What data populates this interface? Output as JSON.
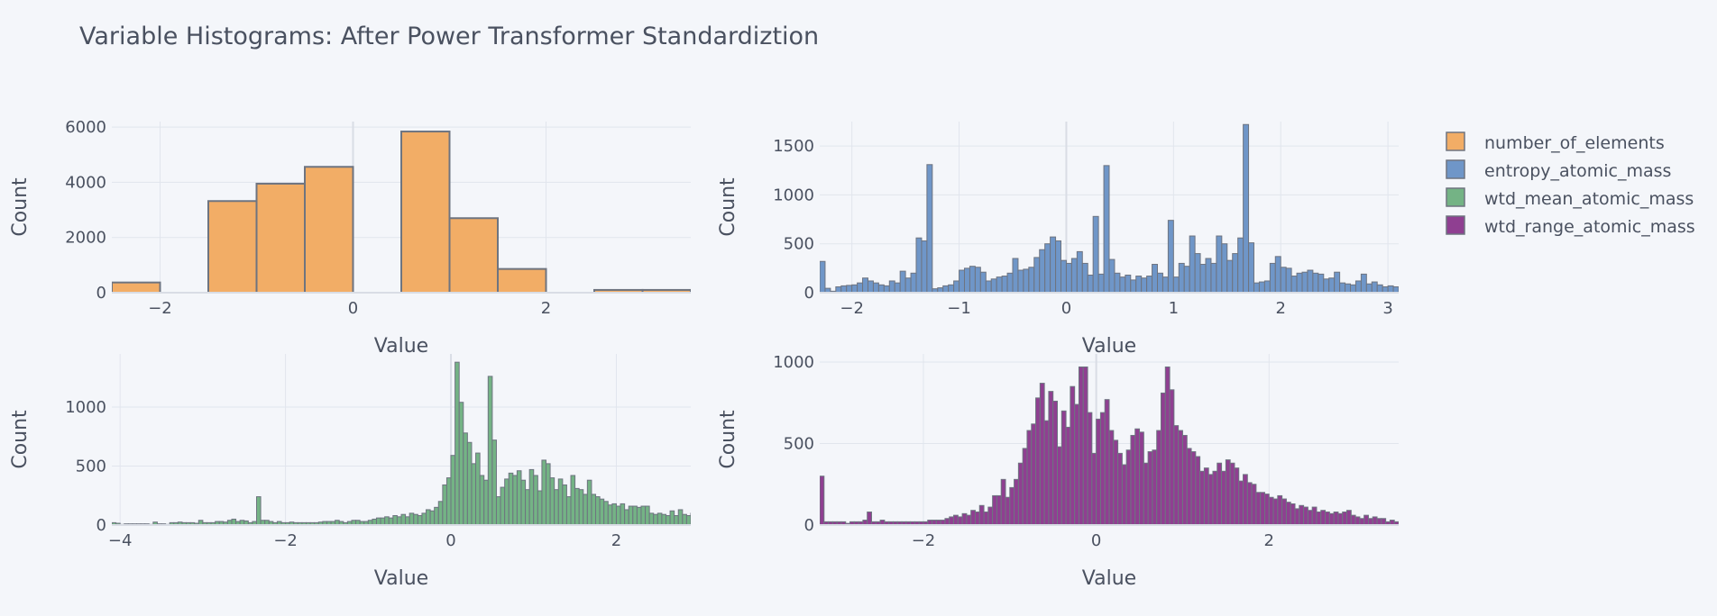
{
  "title": "Variable Histograms: After Power Transformer Standardiztion",
  "colors": {
    "background": "#f4f6fa",
    "grid": "#e1e5ed",
    "zeroline": "#d9dde5",
    "bar_outline": "#6e7480",
    "text": "#4a5160"
  },
  "legend": {
    "placement": "right",
    "items": [
      {
        "label": "number_of_elements",
        "color": "#f2ad66"
      },
      {
        "label": "entropy_atomic_mass",
        "color": "#6f96c8"
      },
      {
        "label": "wtd_mean_atomic_mass",
        "color": "#74b385"
      },
      {
        "label": "wtd_range_atomic_mass",
        "color": "#8f3f91"
      }
    ]
  },
  "chart_data": [
    {
      "type": "bar",
      "series_name": "number_of_elements",
      "xlabel": "Value",
      "ylabel": "Count",
      "xlim": [
        -2.5,
        3.5
      ],
      "ylim": [
        0,
        6200
      ],
      "xticks": [
        -2,
        0,
        2
      ],
      "xtick_labels": [
        "−2",
        "0",
        "2"
      ],
      "yticks": [
        0,
        2000,
        4000,
        6000
      ],
      "ytick_labels": [
        "0",
        "2000",
        "4000",
        "6000"
      ],
      "grid": true,
      "bin_start": -2.5,
      "bin_width": 0.5,
      "values": [
        370,
        0,
        3320,
        3950,
        4560,
        0,
        5840,
        2700,
        860,
        0,
        100,
        100
      ]
    },
    {
      "type": "bar",
      "series_name": "entropy_atomic_mass",
      "xlabel": "Value",
      "ylabel": "Count",
      "xlim": [
        -2.3,
        3.1
      ],
      "ylim": [
        0,
        1750
      ],
      "xticks": [
        -2,
        -1,
        0,
        1,
        2,
        3
      ],
      "xtick_labels": [
        "−2",
        "−1",
        "0",
        "1",
        "2",
        "3"
      ],
      "yticks": [
        0,
        500,
        1000,
        1500
      ],
      "ytick_labels": [
        "0",
        "500",
        "1000",
        "1500"
      ],
      "grid": true,
      "bin_start": -2.3,
      "bin_width": 0.05,
      "values": [
        320,
        45,
        15,
        60,
        70,
        75,
        80,
        100,
        150,
        120,
        100,
        80,
        70,
        120,
        100,
        220,
        150,
        200,
        560,
        530,
        1310,
        40,
        50,
        70,
        80,
        120,
        230,
        250,
        270,
        260,
        210,
        120,
        140,
        160,
        170,
        200,
        350,
        230,
        240,
        260,
        360,
        440,
        500,
        570,
        530,
        330,
        300,
        350,
        420,
        300,
        180,
        780,
        190,
        1300,
        340,
        200,
        160,
        180,
        130,
        170,
        150,
        170,
        290,
        200,
        160,
        740,
        160,
        300,
        270,
        580,
        400,
        290,
        350,
        300,
        580,
        500,
        330,
        400,
        560,
        1720,
        510,
        100,
        110,
        120,
        300,
        370,
        260,
        250,
        170,
        200,
        210,
        230,
        200,
        190,
        140,
        150,
        210,
        100,
        90,
        80,
        120,
        190,
        90,
        110,
        80,
        60,
        70,
        60,
        40,
        60,
        50,
        40,
        50,
        30,
        20,
        40,
        30,
        20,
        10,
        20,
        10,
        20,
        10,
        15,
        10,
        5,
        10,
        40,
        20,
        20,
        10,
        5,
        5,
        35
      ]
    },
    {
      "type": "bar",
      "series_name": "wtd_mean_atomic_mass",
      "xlabel": "Value",
      "ylabel": "Count",
      "xlim": [
        -4.1,
        2.9
      ],
      "ylim": [
        0,
        1450
      ],
      "xticks": [
        -4,
        -2,
        0,
        2
      ],
      "xtick_labels": [
        "−4",
        "−2",
        "0",
        "2"
      ],
      "yticks": [
        0,
        500,
        1000
      ],
      "ytick_labels": [
        "0",
        "500",
        "1000"
      ],
      "grid": true,
      "bin_start": -4.1,
      "bin_width": 0.05,
      "values": [
        20,
        15,
        5,
        10,
        10,
        10,
        10,
        10,
        10,
        5,
        25,
        10,
        10,
        5,
        20,
        20,
        25,
        20,
        20,
        20,
        15,
        40,
        20,
        20,
        20,
        30,
        30,
        25,
        40,
        50,
        30,
        40,
        35,
        20,
        30,
        240,
        40,
        40,
        30,
        20,
        30,
        20,
        20,
        25,
        20,
        20,
        20,
        20,
        20,
        20,
        25,
        30,
        30,
        30,
        40,
        30,
        20,
        30,
        40,
        40,
        30,
        30,
        40,
        50,
        60,
        60,
        70,
        60,
        80,
        70,
        90,
        70,
        100,
        90,
        80,
        100,
        130,
        120,
        150,
        200,
        340,
        400,
        590,
        1380,
        1040,
        780,
        700,
        520,
        610,
        420,
        380,
        1260,
        720,
        240,
        320,
        390,
        440,
        420,
        460,
        380,
        300,
        470,
        420,
        290,
        550,
        520,
        400,
        300,
        390,
        340,
        240,
        420,
        310,
        300,
        260,
        380,
        260,
        240,
        220,
        200,
        170,
        180,
        160,
        180,
        130,
        160,
        160,
        150,
        160,
        160,
        100,
        90,
        100,
        90,
        80,
        120,
        80,
        130,
        90,
        80,
        100,
        80,
        80,
        70,
        80,
        60,
        90,
        80,
        60,
        50,
        60,
        50,
        60,
        50,
        40,
        50,
        40,
        60,
        80,
        70,
        80,
        110,
        60,
        40,
        50,
        40,
        30,
        50
      ]
    },
    {
      "type": "bar",
      "series_name": "wtd_range_atomic_mass",
      "xlabel": "Value",
      "ylabel": "Count",
      "xlim": [
        -3.2,
        3.5
      ],
      "ylim": [
        0,
        1050
      ],
      "xticks": [
        -2,
        0,
        2
      ],
      "xtick_labels": [
        "−2",
        "0",
        "2"
      ],
      "yticks": [
        0,
        500,
        1000
      ],
      "ytick_labels": [
        "0",
        "500",
        "1000"
      ],
      "grid": true,
      "bin_start": -3.2,
      "bin_width": 0.05,
      "values": [
        300,
        20,
        20,
        20,
        20,
        20,
        10,
        20,
        20,
        20,
        30,
        80,
        20,
        20,
        30,
        20,
        20,
        20,
        20,
        20,
        20,
        20,
        20,
        20,
        20,
        30,
        30,
        30,
        30,
        40,
        50,
        60,
        50,
        70,
        60,
        90,
        80,
        120,
        80,
        110,
        180,
        180,
        280,
        170,
        230,
        280,
        380,
        470,
        580,
        620,
        780,
        870,
        640,
        820,
        760,
        480,
        700,
        600,
        850,
        740,
        970,
        970,
        690,
        440,
        650,
        690,
        770,
        580,
        520,
        440,
        370,
        460,
        550,
        590,
        570,
        380,
        450,
        460,
        580,
        810,
        970,
        830,
        610,
        580,
        550,
        470,
        450,
        420,
        330,
        350,
        310,
        330,
        380,
        330,
        400,
        380,
        350,
        270,
        310,
        260,
        250,
        200,
        200,
        190,
        170,
        160,
        180,
        160,
        140,
        130,
        100,
        120,
        110,
        90,
        110,
        80,
        90,
        80,
        70,
        80,
        70,
        80,
        90,
        60,
        50,
        40,
        60,
        40,
        50,
        40,
        40,
        20,
        30,
        20,
        20,
        10,
        10,
        20,
        20,
        10,
        10,
        10
      ]
    }
  ]
}
